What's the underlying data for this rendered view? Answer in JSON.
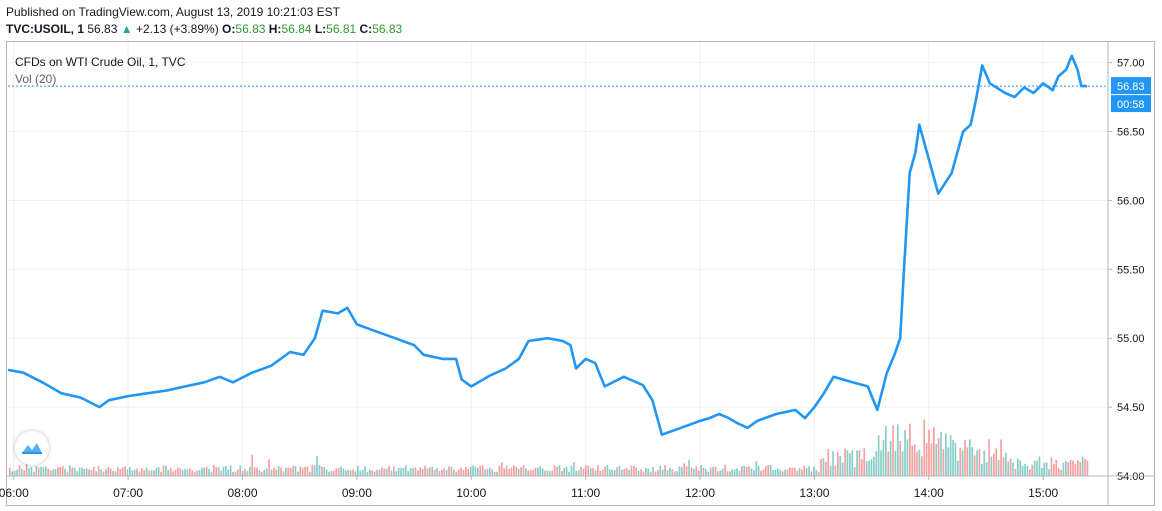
{
  "header": {
    "published": "Published on TradingView.com, August 13, 2019 10:21:03 EST",
    "symbol": "TVC:USOIL, 1",
    "last": "56.83",
    "change": "+2.13 (+3.89%)",
    "o_label": "O:",
    "o_value": "56.83",
    "h_label": "H:",
    "h_value": "56.84",
    "l_label": "L:",
    "l_value": "56.81",
    "c_label": "C:",
    "c_value": "56.83"
  },
  "legend": {
    "title": "CFDs on WTI Crude Oil, 1, TVC",
    "volume": "Vol (20)"
  },
  "price_badge": "56.83",
  "countdown_badge": "00:58",
  "colors": {
    "line": "#2196f3",
    "vol_up": "#26a69a",
    "vol_down": "#ef5350",
    "grid": "#edf0f3",
    "badge": "#2196f3"
  },
  "chart_data": {
    "type": "line",
    "title": "CFDs on WTI Crude Oil, 1, TVC",
    "xlabel": "",
    "ylabel": "",
    "x_ticks": [
      "06:00",
      "07:00",
      "08:00",
      "09:00",
      "10:00",
      "11:00",
      "12:00",
      "13:00",
      "14:00",
      "15:00"
    ],
    "y_ticks": [
      "54.00",
      "54.50",
      "55.00",
      "55.50",
      "56.00",
      "56.50",
      "57.00"
    ],
    "ylim": [
      54.0,
      57.15
    ],
    "xlim": [
      "05:57",
      "15:34"
    ],
    "grid": true,
    "legend": "top-left",
    "last_price": 56.83,
    "series": [
      {
        "type": "line",
        "points": [
          [
            "05:57",
            54.77
          ],
          [
            "06:05",
            54.75
          ],
          [
            "06:15",
            54.68
          ],
          [
            "06:25",
            54.6
          ],
          [
            "06:35",
            54.57
          ],
          [
            "06:45",
            54.5
          ],
          [
            "06:50",
            54.55
          ],
          [
            "07:00",
            54.58
          ],
          [
            "07:10",
            54.6
          ],
          [
            "07:20",
            54.62
          ],
          [
            "07:30",
            54.65
          ],
          [
            "07:40",
            54.68
          ],
          [
            "07:48",
            54.72
          ],
          [
            "07:55",
            54.68
          ],
          [
            "08:05",
            54.75
          ],
          [
            "08:15",
            54.8
          ],
          [
            "08:25",
            54.9
          ],
          [
            "08:32",
            54.88
          ],
          [
            "08:38",
            55.0
          ],
          [
            "08:42",
            55.2
          ],
          [
            "08:50",
            55.18
          ],
          [
            "08:55",
            55.22
          ],
          [
            "09:00",
            55.1
          ],
          [
            "09:10",
            55.05
          ],
          [
            "09:20",
            55.0
          ],
          [
            "09:30",
            54.95
          ],
          [
            "09:35",
            54.88
          ],
          [
            "09:45",
            54.85
          ],
          [
            "09:52",
            54.85
          ],
          [
            "09:55",
            54.7
          ],
          [
            "10:00",
            54.65
          ],
          [
            "10:10",
            54.73
          ],
          [
            "10:18",
            54.78
          ],
          [
            "10:25",
            54.85
          ],
          [
            "10:30",
            54.98
          ],
          [
            "10:40",
            55.0
          ],
          [
            "10:48",
            54.98
          ],
          [
            "10:52",
            54.95
          ],
          [
            "10:55",
            54.78
          ],
          [
            "11:00",
            54.85
          ],
          [
            "11:05",
            54.82
          ],
          [
            "11:10",
            54.65
          ],
          [
            "11:20",
            54.72
          ],
          [
            "11:30",
            54.66
          ],
          [
            "11:35",
            54.55
          ],
          [
            "11:40",
            54.3
          ],
          [
            "11:50",
            54.35
          ],
          [
            "12:00",
            54.4
          ],
          [
            "12:05",
            54.42
          ],
          [
            "12:10",
            54.45
          ],
          [
            "12:15",
            54.42
          ],
          [
            "12:20",
            54.38
          ],
          [
            "12:25",
            54.35
          ],
          [
            "12:30",
            54.4
          ],
          [
            "12:40",
            54.45
          ],
          [
            "12:50",
            54.48
          ],
          [
            "12:55",
            54.42
          ],
          [
            "13:00",
            54.5
          ],
          [
            "13:05",
            54.6
          ],
          [
            "13:10",
            54.72
          ],
          [
            "13:20",
            54.68
          ],
          [
            "13:28",
            54.65
          ],
          [
            "13:33",
            54.48
          ],
          [
            "13:38",
            54.75
          ],
          [
            "13:42",
            54.88
          ],
          [
            "13:45",
            55.0
          ],
          [
            "13:47",
            55.5
          ],
          [
            "13:50",
            56.2
          ],
          [
            "13:53",
            56.35
          ],
          [
            "13:55",
            56.55
          ],
          [
            "13:58",
            56.4
          ],
          [
            "14:00",
            56.3
          ],
          [
            "14:05",
            56.05
          ],
          [
            "14:12",
            56.2
          ],
          [
            "14:18",
            56.5
          ],
          [
            "14:22",
            56.55
          ],
          [
            "14:25",
            56.75
          ],
          [
            "14:28",
            56.98
          ],
          [
            "14:32",
            56.85
          ],
          [
            "14:40",
            56.78
          ],
          [
            "14:45",
            56.75
          ],
          [
            "14:50",
            56.82
          ],
          [
            "14:55",
            56.78
          ],
          [
            "15:00",
            56.85
          ],
          [
            "15:05",
            56.8
          ],
          [
            "15:08",
            56.9
          ],
          [
            "15:12",
            56.95
          ],
          [
            "15:15",
            57.05
          ],
          [
            "15:18",
            56.95
          ],
          [
            "15:20",
            56.83
          ],
          [
            "15:23",
            56.83
          ]
        ]
      }
    ]
  }
}
